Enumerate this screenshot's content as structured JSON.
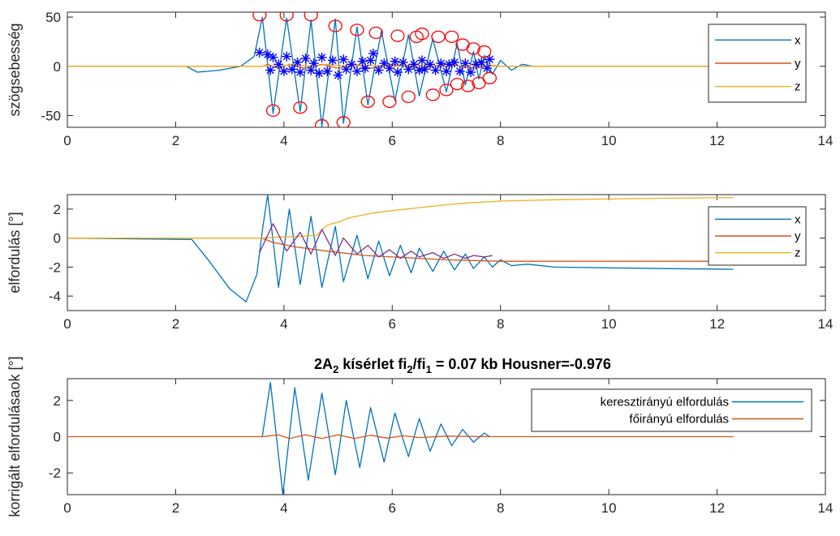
{
  "colors": {
    "x": "#0072BD",
    "y": "#D95319",
    "z": "#EDB120",
    "purple": "#7E2F8E",
    "peak": "#FF0000",
    "star": "#0000FF"
  },
  "chart_data": [
    {
      "type": "line",
      "ylabel": "szögsebesség",
      "xlim": [
        0,
        14
      ],
      "ylim": [
        -62,
        55
      ],
      "xticks": [
        "0",
        "2",
        "4",
        "6",
        "8",
        "10",
        "12",
        "14"
      ],
      "yticks": [
        {
          "v": -50,
          "t": "-50"
        },
        {
          "v": 0,
          "t": "0"
        },
        {
          "v": 50,
          "t": "50"
        }
      ],
      "legend": {
        "position": "top-right",
        "entries": [
          "x",
          "y",
          "z"
        ]
      },
      "series": [
        {
          "name": "x",
          "color": "x",
          "x": [
            0,
            2.2,
            2.4,
            2.8,
            3.2,
            3.45,
            3.6,
            3.8,
            4.05,
            4.3,
            4.5,
            4.7,
            4.95,
            5.1,
            5.35,
            5.55,
            5.8,
            6.05,
            6.3,
            6.5,
            6.75,
            7.0,
            7.2,
            7.35,
            7.5,
            7.6,
            7.7,
            7.85,
            8.0,
            8.2,
            8.4,
            8.6,
            12.3
          ],
          "y": [
            0,
            0,
            -6,
            -4,
            0,
            10,
            50,
            -48,
            49,
            -46,
            47,
            -61,
            48,
            -58,
            40,
            -39,
            36,
            -35,
            32,
            -30,
            28,
            -26,
            23,
            -19,
            15,
            -13,
            11,
            -8,
            6,
            -4,
            2,
            0,
            0
          ]
        },
        {
          "name": "y",
          "color": "y",
          "x": [
            0,
            3.6,
            3.7,
            3.9,
            4.1,
            4.4,
            4.7,
            5.0,
            5.3,
            5.6,
            6.0,
            6.5,
            7.0,
            7.5,
            7.8,
            8.0,
            12.3
          ],
          "y": [
            0,
            0,
            2,
            -2,
            2,
            -2,
            2,
            -2,
            2,
            -2,
            2,
            -2,
            2,
            -2,
            1,
            0,
            0
          ]
        },
        {
          "name": "z",
          "color": "z",
          "x": [
            0,
            3.6,
            3.7,
            3.9,
            4.2,
            4.5,
            4.8,
            5.2,
            5.6,
            6.0,
            6.5,
            7.0,
            7.5,
            8.0,
            12.3
          ],
          "y": [
            0,
            0,
            1,
            0,
            2,
            0,
            2,
            0,
            1,
            0,
            1,
            0,
            1,
            0,
            0
          ]
        }
      ],
      "peaks": {
        "x": [
          3.55,
          3.8,
          4.05,
          4.3,
          4.5,
          4.7,
          4.95,
          5.1,
          5.35,
          5.55,
          5.7,
          5.95,
          6.1,
          6.3,
          6.45,
          6.55,
          6.75,
          6.85,
          7.0,
          7.1,
          7.2,
          7.3,
          7.4,
          7.5,
          7.6,
          7.7,
          7.8
        ],
        "y": [
          52,
          -45,
          52,
          -42,
          52,
          -60,
          41,
          -57,
          37,
          -36,
          34,
          -36,
          31,
          -31,
          30,
          33,
          -29,
          30,
          -24,
          30,
          -18,
          22,
          -20,
          18,
          -17,
          15,
          -12
        ]
      },
      "stars": {
        "x": [
          3.55,
          3.7,
          3.75,
          3.8,
          3.9,
          4.0,
          4.05,
          4.15,
          4.25,
          4.3,
          4.4,
          4.5,
          4.55,
          4.65,
          4.7,
          4.8,
          4.9,
          5.0,
          5.1,
          5.15,
          5.25,
          5.35,
          5.45,
          5.5,
          5.6,
          5.65,
          5.75,
          5.85,
          5.95,
          6.05,
          6.1,
          6.2,
          6.3,
          6.4,
          6.5,
          6.55,
          6.6,
          6.7,
          6.8,
          6.9,
          7.0,
          7.05,
          7.15,
          7.25,
          7.35,
          7.45,
          7.55,
          7.65,
          7.75,
          7.8
        ],
        "y": [
          14,
          12,
          -4,
          9,
          2,
          -5,
          10,
          -3,
          4,
          -6,
          8,
          -4,
          3,
          -7,
          9,
          -5,
          6,
          -9,
          7,
          -3,
          2,
          -5,
          5,
          -2,
          6,
          13,
          -4,
          3,
          -2,
          5,
          -6,
          4,
          -3,
          2,
          -4,
          6,
          -3,
          2,
          -4,
          3,
          -5,
          2,
          4,
          -5,
          3,
          -6,
          2,
          4,
          -2,
          7
        ]
      }
    },
    {
      "type": "line",
      "ylabel": "elfordulás [°]",
      "xlim": [
        0,
        14
      ],
      "ylim": [
        -5,
        3
      ],
      "xticks": [
        "0",
        "2",
        "4",
        "6",
        "8",
        "10",
        "12",
        "14"
      ],
      "yticks": [
        {
          "v": -4,
          "t": "-4"
        },
        {
          "v": -2,
          "t": "-2"
        },
        {
          "v": 0,
          "t": "0"
        },
        {
          "v": 2,
          "t": "2"
        }
      ],
      "legend": {
        "position": "top-right",
        "entries": [
          "x",
          "y",
          "z"
        ]
      },
      "series": [
        {
          "name": "x",
          "color": "x",
          "x": [
            0,
            2.3,
            2.6,
            3.0,
            3.3,
            3.5,
            3.6,
            3.7,
            3.9,
            4.1,
            4.3,
            4.5,
            4.7,
            4.95,
            5.1,
            5.35,
            5.55,
            5.75,
            5.95,
            6.15,
            6.35,
            6.5,
            6.75,
            6.95,
            7.15,
            7.35,
            7.5,
            7.7,
            7.85,
            8.0,
            8.2,
            8.5,
            9,
            10,
            11,
            12.3
          ],
          "y": [
            0,
            -0.1,
            -1.5,
            -3.5,
            -4.4,
            -2.5,
            0.5,
            3.0,
            -3.4,
            2.0,
            -3.2,
            1.5,
            -3.4,
            0.8,
            -3.0,
            0.2,
            -2.8,
            -0.2,
            -2.6,
            -0.5,
            -2.4,
            -0.7,
            -2.3,
            -0.9,
            -2.2,
            -1.1,
            -2.1,
            -1.3,
            -2.0,
            -1.5,
            -1.9,
            -1.8,
            -2.0,
            -2.05,
            -2.1,
            -2.15
          ]
        },
        {
          "name": "y",
          "color": "y",
          "x": [
            0,
            3.6,
            3.8,
            4.2,
            4.8,
            5.5,
            6.0,
            6.5,
            7.0,
            7.5,
            8.0,
            9,
            12.3
          ],
          "y": [
            0,
            0,
            -0.3,
            -0.6,
            -0.9,
            -1.2,
            -1.3,
            -1.4,
            -1.5,
            -1.55,
            -1.6,
            -1.6,
            -1.6
          ]
        },
        {
          "name": "z",
          "color": "z",
          "x": [
            0,
            3.6,
            3.8,
            4.2,
            4.6,
            4.8,
            5.0,
            5.2,
            5.6,
            6.0,
            6.5,
            7.0,
            7.5,
            8.0,
            9.0,
            10.0,
            11.0,
            12.3
          ],
          "y": [
            0,
            0,
            0.05,
            0.1,
            0.2,
            0.9,
            1.1,
            1.4,
            1.7,
            1.9,
            2.1,
            2.3,
            2.45,
            2.55,
            2.65,
            2.7,
            2.75,
            2.8
          ]
        }
      ],
      "purple": {
        "x": [
          3.55,
          3.8,
          4.05,
          4.3,
          4.5,
          4.7,
          4.95,
          5.1,
          5.35,
          5.55,
          5.75,
          5.95,
          6.15,
          6.35,
          6.5,
          6.75,
          6.95,
          7.15,
          7.35,
          7.5,
          7.7,
          7.85
        ],
        "y": [
          -1.0,
          1.0,
          -0.9,
          0.4,
          -1.1,
          0.6,
          -1.2,
          0.0,
          -1.1,
          -0.5,
          -1.3,
          -0.8,
          -1.4,
          -0.9,
          -1.3,
          -1.0,
          -1.4,
          -1.1,
          -1.4,
          -1.2,
          -1.3,
          -1.2
        ]
      }
    },
    {
      "type": "line",
      "title_parts": [
        {
          "text": "2A",
          "sub": false
        },
        {
          "text": "2",
          "sub": true
        },
        {
          "text": " kísérlet fi",
          "sub": false
        },
        {
          "text": "2",
          "sub": true
        },
        {
          "text": "/fi",
          "sub": false
        },
        {
          "text": "1",
          "sub": true
        },
        {
          "text": " = 0.07 kb Housner=-0.976",
          "sub": false
        }
      ],
      "ylabel": "korrigált elfordulásaok [°]",
      "xlim": [
        0,
        14
      ],
      "ylim": [
        -3.2,
        3.2
      ],
      "xticks": [
        "0",
        "2",
        "4",
        "6",
        "8",
        "10",
        "12",
        "14"
      ],
      "yticks": [
        {
          "v": -2,
          "t": "-2"
        },
        {
          "v": 0,
          "t": "0"
        },
        {
          "v": 2,
          "t": "2"
        }
      ],
      "legend": {
        "position": "top-right",
        "entries": [
          "keresztirányú elfordulás",
          "főirányú elfordulás"
        ]
      },
      "series": [
        {
          "name": "keresztirányú elfordulás",
          "color": "x",
          "x": [
            3.6,
            3.75,
            3.98,
            4.2,
            4.45,
            4.7,
            4.95,
            5.15,
            5.4,
            5.6,
            5.85,
            6.05,
            6.3,
            6.5,
            6.7,
            6.9,
            7.1,
            7.3,
            7.5,
            7.7,
            7.8
          ],
          "y": [
            0,
            3.0,
            -3.2,
            2.7,
            -2.4,
            2.4,
            -2.1,
            2.0,
            -1.7,
            1.6,
            -1.4,
            1.3,
            -1.1,
            1.0,
            -0.8,
            0.7,
            -0.5,
            0.4,
            -0.3,
            0.2,
            0
          ]
        },
        {
          "name": "főirányú elfordulás",
          "color": "y",
          "x": [
            0,
            3.6,
            3.9,
            4.1,
            4.4,
            4.7,
            5.0,
            5.3,
            5.6,
            5.9,
            6.2,
            6.5,
            7.0,
            7.8,
            12.3
          ],
          "y": [
            0,
            0,
            0.1,
            -0.1,
            0.1,
            -0.1,
            0.1,
            -0.1,
            0.08,
            -0.08,
            0.05,
            -0.05,
            0.03,
            0,
            0
          ]
        }
      ]
    }
  ]
}
